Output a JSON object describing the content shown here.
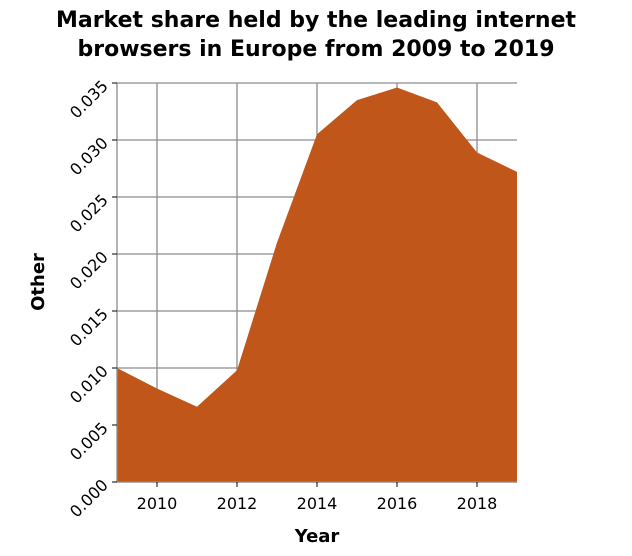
{
  "chart_data": {
    "type": "area",
    "title_lines": [
      "Market share held by the leading internet",
      "browsers in Europe from 2009 to 2019"
    ],
    "xlabel": "Year",
    "ylabel": "Other",
    "x": [
      2009,
      2010,
      2011,
      2012,
      2013,
      2014,
      2015,
      2016,
      2017,
      2018,
      2019
    ],
    "series": [
      {
        "values": [
          0.01,
          0.0082,
          0.0066,
          0.0098,
          0.021,
          0.0305,
          0.0335,
          0.0346,
          0.0333,
          0.0289,
          0.0272
        ]
      }
    ],
    "xlim": [
      2009,
      2019
    ],
    "ylim": [
      0,
      0.035
    ],
    "xticks": [
      2010,
      2012,
      2014,
      2016,
      2018
    ],
    "xtick_labels": [
      "2010",
      "2012",
      "2014",
      "2016",
      "2018"
    ],
    "yticks": [
      0,
      0.005,
      0.01,
      0.015,
      0.02,
      0.025,
      0.03,
      0.035
    ],
    "ytick_labels": [
      "0.000",
      "0.005",
      "0.010",
      "0.015",
      "0.020",
      "0.025",
      "0.030",
      "0.035"
    ],
    "grid": true,
    "fill_color": "#c0561a",
    "grid_color": "#8c8c8c",
    "background_color": "#ffffff"
  }
}
